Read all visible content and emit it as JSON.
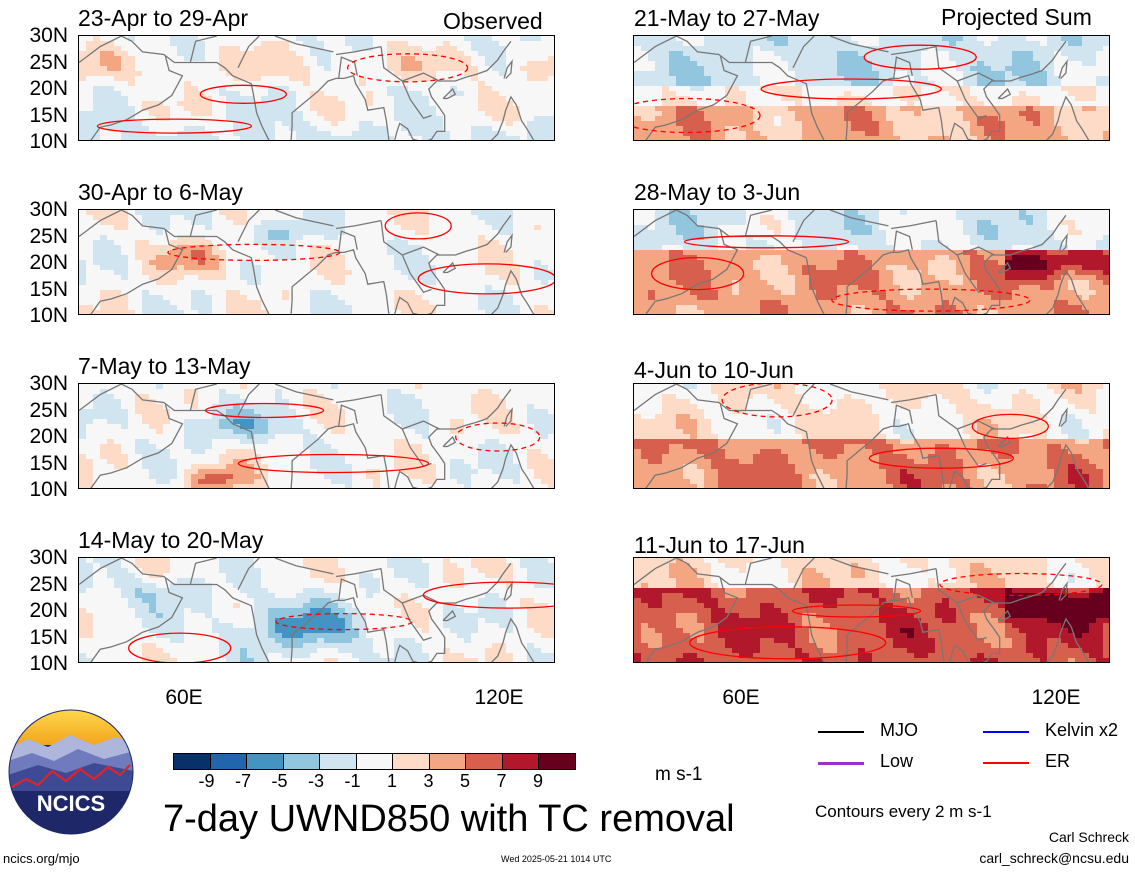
{
  "header": {
    "left_label": "Observed",
    "right_label": "Projected Sum"
  },
  "panels": [
    {
      "title": "23-Apr to 29-Apr",
      "column": "observed"
    },
    {
      "title": "21-May to 27-May",
      "column": "projected"
    },
    {
      "title": "30-Apr to 6-May",
      "column": "observed"
    },
    {
      "title": "28-May to 3-Jun",
      "column": "projected"
    },
    {
      "title": "7-May to 13-May",
      "column": "observed"
    },
    {
      "title": "4-Jun to 10-Jun",
      "column": "projected"
    },
    {
      "title": "14-May to 20-May",
      "column": "observed"
    },
    {
      "title": "11-Jun to 17-Jun",
      "column": "projected"
    }
  ],
  "chart_data": {
    "type": "heatmap",
    "variable": "7-day UWND850 with TC removal",
    "units": "m s-1",
    "y_ticks": [
      "30N",
      "25N",
      "20N",
      "15N",
      "10N"
    ],
    "ylim": [
      10,
      30
    ],
    "x_ticks": [
      "60E",
      "120E"
    ],
    "x_tick_values": [
      60,
      120
    ],
    "xlim": [
      40,
      130
    ],
    "colorbar": {
      "labels": [
        "-9",
        "-7",
        "-5",
        "-3",
        "-1",
        "1",
        "3",
        "5",
        "7",
        "9"
      ],
      "colors": [
        "#08306b",
        "#2166ac",
        "#4393c3",
        "#92c5de",
        "#d1e5f0",
        "#f7f7f7",
        "#fddbc7",
        "#f4a582",
        "#d6604d",
        "#b2182b",
        "#67001f"
      ]
    },
    "contour_legend": [
      {
        "name": "MJO",
        "color": "#000000"
      },
      {
        "name": "Kelvin x2",
        "color": "#0000ff"
      },
      {
        "name": "Low",
        "color": "#9932cc"
      },
      {
        "name": "ER",
        "color": "#ff0000"
      }
    ],
    "contour_note": "Contours every 2 m s-1"
  },
  "footer": {
    "title": "7-day UWND850 with TC removal",
    "logo_text": "NCICS",
    "url": "ncics.org/mjo",
    "timestamp": "Wed 2025-05-21 1014 UTC",
    "author": "Carl Schreck",
    "email": "carl_schreck@ncsu.edu"
  }
}
